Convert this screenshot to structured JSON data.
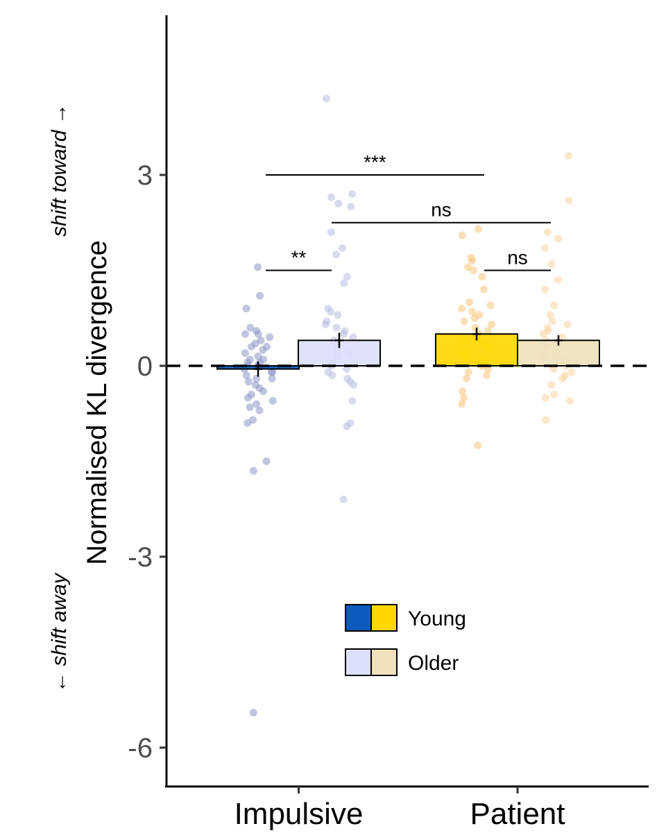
{
  "chart_data": {
    "type": "bar",
    "ylabel": "Normalised KL divergence",
    "direction_labels": {
      "up": "shift toward →",
      "down": "← shift away"
    },
    "categories": [
      "Impulsive",
      "Patient"
    ],
    "ylim": [
      -6.5,
      5.5
    ],
    "yticks": [
      {
        "value": 3,
        "label": "3"
      },
      {
        "value": 0,
        "label": "0"
      },
      {
        "value": -3,
        "label": "-3"
      },
      {
        "value": -6,
        "label": "-6"
      }
    ],
    "reference_line": {
      "y": 0,
      "style": "dashed"
    },
    "series": [
      {
        "name": "Young",
        "values": [
          -0.05,
          0.5
        ],
        "errors": [
          0.12,
          0.1
        ],
        "colors": [
          "#0c5bbd",
          "#ffd700"
        ]
      },
      {
        "name": "Older",
        "values": [
          0.4,
          0.4
        ],
        "errors": [
          0.12,
          0.08
        ],
        "colors": [
          "#dde0fb",
          "#efe2bd"
        ]
      }
    ],
    "significance": [
      {
        "label": "***",
        "from": "Impulsive Young",
        "to": "Patient Young",
        "y": 3.0
      },
      {
        "label": "ns",
        "from": "Impulsive Older",
        "to": "Patient Older",
        "y": 2.25
      },
      {
        "label": "**",
        "from": "Impulsive Young",
        "to": "Impulsive Older",
        "y": 1.5
      },
      {
        "label": "ns",
        "from": "Patient Young",
        "to": "Patient Older",
        "y": 1.5
      }
    ],
    "points": [
      {
        "group": 0,
        "values": [
          1.55,
          1.1,
          0.9,
          0.6,
          0.55,
          0.5,
          0.5,
          0.45,
          0.4,
          0.35,
          0.3,
          0.3,
          0.25,
          0.2,
          0.15,
          0.1,
          0.1,
          0.05,
          0.05,
          0.0,
          0.0,
          -0.05,
          -0.1,
          -0.1,
          -0.15,
          -0.2,
          -0.2,
          -0.25,
          -0.3,
          -0.35,
          -0.4,
          -0.45,
          -0.5,
          -0.55,
          -0.6,
          -0.65,
          -0.7,
          -0.85,
          -0.9,
          -1.5,
          -1.65,
          -5.45
        ]
      },
      {
        "group": 1,
        "values": [
          4.2,
          2.7,
          2.65,
          2.5,
          2.55,
          2.1,
          1.85,
          1.75,
          1.4,
          1.3,
          0.9,
          0.85,
          0.8,
          0.7,
          0.65,
          0.6,
          0.55,
          0.5,
          0.45,
          0.4,
          0.35,
          0.3,
          0.25,
          0.2,
          0.15,
          0.1,
          0.05,
          0.0,
          -0.05,
          -0.1,
          -0.15,
          -0.2,
          -0.25,
          -0.3,
          -0.55,
          -0.9,
          -0.95,
          -2.1
        ]
      },
      {
        "group": 2,
        "values": [
          2.15,
          2.05,
          1.7,
          1.65,
          1.55,
          1.5,
          1.4,
          1.2,
          1.0,
          0.95,
          0.9,
          0.85,
          0.8,
          0.75,
          0.7,
          0.65,
          0.6,
          0.55,
          0.5,
          0.45,
          0.4,
          0.35,
          0.3,
          0.25,
          0.2,
          0.15,
          0.1,
          0.05,
          0.0,
          -0.05,
          -0.1,
          -0.15,
          -0.2,
          -0.4,
          -0.5,
          -0.6,
          -1.25
        ]
      },
      {
        "group": 3,
        "values": [
          3.3,
          2.6,
          2.1,
          2.0,
          1.85,
          1.6,
          1.35,
          1.2,
          0.95,
          0.8,
          0.7,
          0.65,
          0.6,
          0.55,
          0.5,
          0.45,
          0.4,
          0.35,
          0.3,
          0.25,
          0.2,
          0.15,
          0.1,
          0.05,
          0.0,
          -0.05,
          -0.1,
          -0.15,
          -0.2,
          -0.3,
          -0.45,
          -0.5,
          -0.55,
          -0.85
        ]
      }
    ],
    "point_colors": [
      "#8c96c6",
      "#b8bde0",
      "#f7c47a",
      "#f9d3a0"
    ]
  }
}
